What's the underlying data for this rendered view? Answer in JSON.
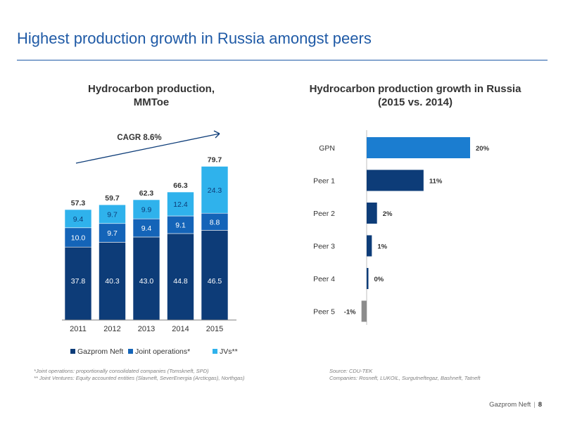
{
  "header": {
    "title": "Highest production growth in Russia amongst peers"
  },
  "footer": {
    "company": "Gazprom Neft",
    "page": "8"
  },
  "footnotes": {
    "left_1": "*Joint operations: proportionally consolidated companies (Tomskneft, SPD)",
    "left_2": "** Joint Ventures: Equity accounted entities (Slavneft, SeverEnergia (Arcticgas), Northgas)",
    "right_1": "Source: CDU-TEK",
    "right_2": "Companies: Rosneft, LUKOIL, Surgutneftegaz, Bashneft, Tatneft"
  },
  "chart_data": [
    {
      "type": "bar",
      "stacked": true,
      "title_line1": "Hydrocarbon production,",
      "title_line2": "MMToe",
      "annotation": "CAGR 8.6%",
      "categories": [
        "2011",
        "2012",
        "2013",
        "2014",
        "2015"
      ],
      "totals": [
        "57.3",
        "59.7",
        "62.3",
        "66.3",
        "79.7"
      ],
      "series": [
        {
          "name": "Gazprom Neft",
          "values": [
            37.8,
            40.3,
            43.0,
            44.8,
            46.5
          ],
          "labels": [
            "37.8",
            "40.3",
            "43.0",
            "44.8",
            "46.5"
          ],
          "color": "#0d3c78"
        },
        {
          "name": "Joint operations*",
          "values": [
            10.0,
            9.7,
            9.4,
            9.1,
            8.8
          ],
          "labels": [
            "10.0",
            "9.7",
            "9.4",
            "9.1",
            "8.8"
          ],
          "color": "#1464b8"
        },
        {
          "name": "JVs**",
          "values": [
            9.4,
            9.7,
            9.9,
            12.4,
            24.3
          ],
          "labels": [
            "9.4",
            "9.7",
            "9.9",
            "12.4",
            "24.3"
          ],
          "color": "#2fb2ec"
        }
      ],
      "ylim": [
        0,
        85
      ],
      "legend": "bottom"
    },
    {
      "type": "bar",
      "orientation": "horizontal",
      "title_line1": "Hydrocarbon production growth in Russia",
      "title_line2": "(2015 vs. 2014)",
      "categories": [
        "GPN",
        "Peer 1",
        "Peer 2",
        "Peer 3",
        "Peer 4",
        "Peer 5"
      ],
      "values": [
        20,
        11,
        2,
        1,
        0,
        -1
      ],
      "labels": [
        "20%",
        "11%",
        "2%",
        "1%",
        "0%",
        "-1%"
      ],
      "colors": [
        "#1b7dd0",
        "#0d3c78",
        "#0d3c78",
        "#0d3c78",
        "#0d3c78",
        "#8c8c8c"
      ],
      "xlim": [
        -1,
        20
      ]
    }
  ]
}
